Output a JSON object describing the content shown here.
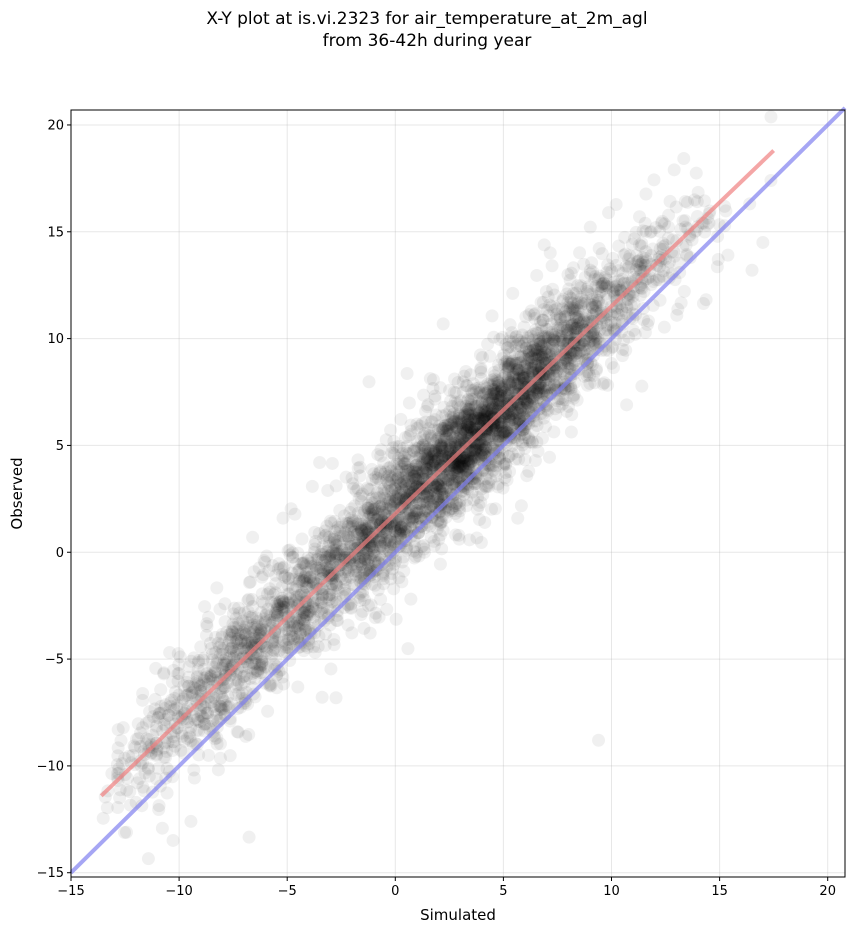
{
  "chart_data": {
    "type": "scatter",
    "title_line1": "X-Y plot at is.vi.2323 for air_temperature_at_2m_agl",
    "title_line2": "from 36-42h during year",
    "xlabel": "Simulated",
    "ylabel": "Observed",
    "xlim": [
      -15,
      20.8
    ],
    "ylim": [
      -15.2,
      20.7
    ],
    "xticks": [
      -15,
      -10,
      -5,
      0,
      5,
      10,
      15,
      20
    ],
    "yticks": [
      -15,
      -10,
      -5,
      0,
      5,
      10,
      15,
      20
    ],
    "xtick_labels": [
      "−15",
      "−10",
      "−5",
      "0",
      "5",
      "10",
      "15",
      "20"
    ],
    "ytick_labels": [
      "−15",
      "−10",
      "−5",
      "0",
      "5",
      "10",
      "15",
      "20"
    ],
    "grid": true,
    "point_color": "#000000",
    "point_alpha": 0.06,
    "point_cloud_trend": {
      "slope": 0.97,
      "intercept": 1.9,
      "spread": 1.35,
      "x_range": [
        -13.6,
        17.6
      ],
      "approx_points": 4200
    },
    "notable_points": [
      {
        "x": 9.4,
        "y": -8.8
      },
      {
        "x": -3.5,
        "y": 4.2
      },
      {
        "x": -6.6,
        "y": 0.7
      },
      {
        "x": 12.9,
        "y": 17.9
      },
      {
        "x": 17.0,
        "y": 14.5
      },
      {
        "x": 10.7,
        "y": 6.9
      },
      {
        "x": 16.5,
        "y": 13.2
      }
    ],
    "lines": [
      {
        "name": "regression",
        "color": "#f08080",
        "x": [
          -13.6,
          17.5
        ],
        "y": [
          -11.4,
          18.8
        ]
      },
      {
        "name": "one-to-one",
        "color": "#8080f0",
        "x": [
          -15,
          20.8
        ],
        "y": [
          -15,
          20.8
        ]
      }
    ]
  }
}
